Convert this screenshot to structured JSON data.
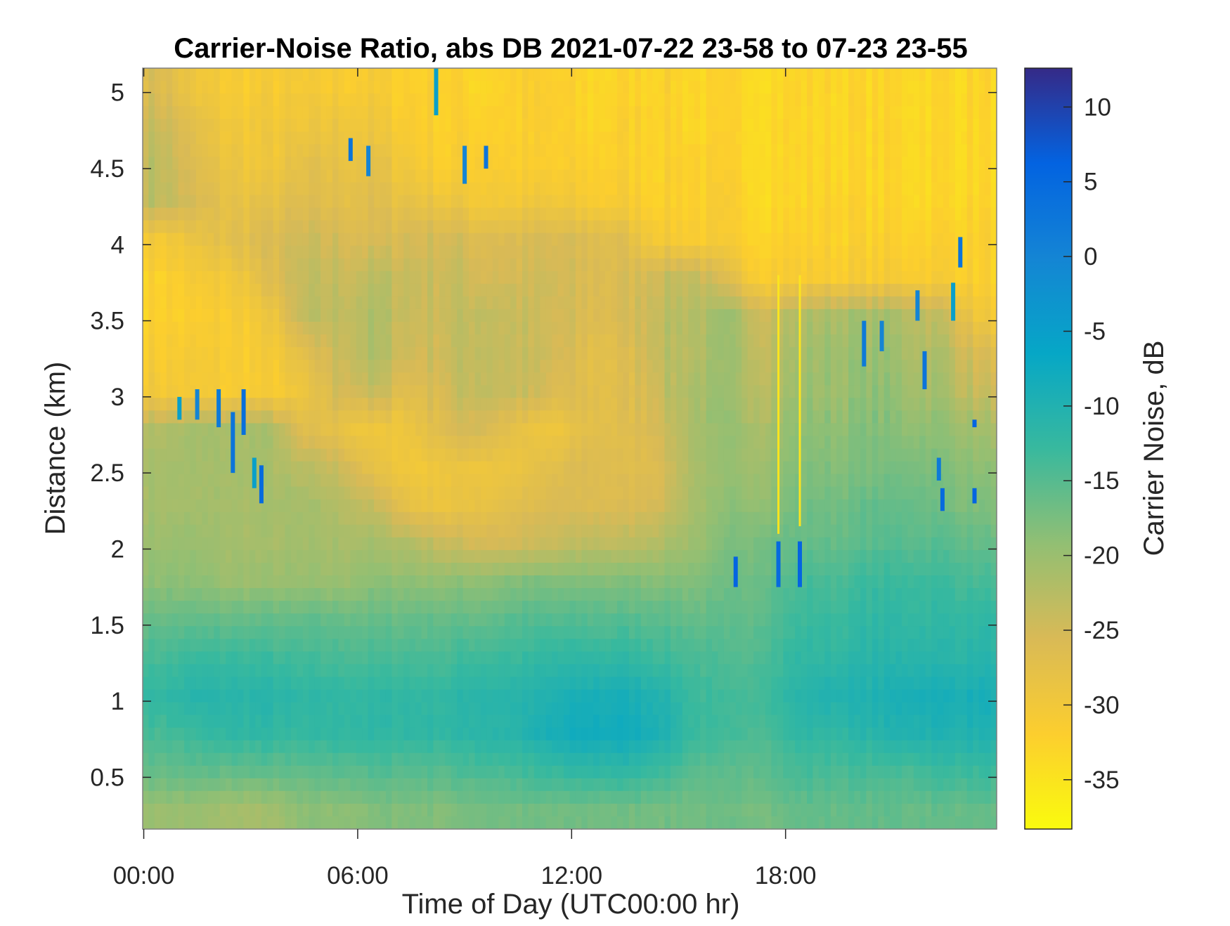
{
  "chart_data": {
    "type": "heatmap",
    "title": "Carrier-Noise Ratio, abs DB 2021-07-22 23-58 to 07-23 23-55",
    "xlabel": "Time of Day (UTC00:00 hr)",
    "ylabel": "Distance (km)",
    "colorbar_label": "Carrier Noise, dB",
    "colormap": "parula (reversed: yellow = low, dark blue = high)",
    "xlim_hours": [
      -0.03,
      23.92
    ],
    "ylim_km": [
      0.16,
      5.16
    ],
    "clim_db": [
      -38.3,
      12.6
    ],
    "x_ticks": [
      {
        "value": 0,
        "label": "00:00"
      },
      {
        "value": 6,
        "label": "06:00"
      },
      {
        "value": 12,
        "label": "12:00"
      },
      {
        "value": 18,
        "label": "18:00"
      }
    ],
    "y_ticks": [
      {
        "value": 0.5,
        "label": "0.5"
      },
      {
        "value": 1,
        "label": "1"
      },
      {
        "value": 1.5,
        "label": "1.5"
      },
      {
        "value": 2,
        "label": "2"
      },
      {
        "value": 2.5,
        "label": "2.5"
      },
      {
        "value": 3,
        "label": "3"
      },
      {
        "value": 3.5,
        "label": "3.5"
      },
      {
        "value": 4,
        "label": "4"
      },
      {
        "value": 4.5,
        "label": "4.5"
      },
      {
        "value": 5,
        "label": "5"
      }
    ],
    "colorbar_ticks": [
      {
        "value": 10,
        "label": "10"
      },
      {
        "value": 5,
        "label": "5"
      },
      {
        "value": 0,
        "label": "0"
      },
      {
        "value": -5,
        "label": "-5"
      },
      {
        "value": -10,
        "label": "-10"
      },
      {
        "value": -15,
        "label": "-15"
      },
      {
        "value": -20,
        "label": "-20"
      },
      {
        "value": -25,
        "label": "-25"
      },
      {
        "value": -30,
        "label": "-30"
      },
      {
        "value": -35,
        "label": "-35"
      }
    ],
    "grid": false,
    "x_hours": [
      0.5,
      1.5,
      2.5,
      3.5,
      4.5,
      5.5,
      6.5,
      7.5,
      8.5,
      9.5,
      10.5,
      11.5,
      12.5,
      13.5,
      14.5,
      15.5,
      16.5,
      17.5,
      18.5,
      19.5,
      20.5,
      21.5,
      22.5,
      23.5
    ],
    "y_km": [
      5.04,
      4.79,
      4.54,
      4.29,
      4.04,
      3.79,
      3.54,
      3.29,
      3.04,
      2.79,
      2.54,
      2.29,
      2.04,
      1.79,
      1.54,
      1.29,
      1.04,
      0.79,
      0.54,
      0.29
    ],
    "values_db": [
      [
        -26,
        -30,
        -31,
        -31,
        -31,
        -31,
        -31,
        -32,
        -32,
        -33,
        -32,
        -32,
        -33,
        -33,
        -32,
        -33,
        -33,
        -33,
        -33,
        -33,
        -33,
        -33,
        -33,
        -33
      ],
      [
        -24,
        -28,
        -30,
        -30,
        -30,
        -29,
        -30,
        -31,
        -32,
        -32,
        -32,
        -32,
        -33,
        -32,
        -32,
        -33,
        -33,
        -33,
        -33,
        -33,
        -33,
        -33,
        -33,
        -33
      ],
      [
        -23,
        -27,
        -29,
        -30,
        -28,
        -28,
        -28,
        -30,
        -32,
        -31,
        -32,
        -32,
        -32,
        -32,
        -32,
        -32,
        -33,
        -33,
        -33,
        -33,
        -33,
        -33,
        -33,
        -33
      ],
      [
        -23,
        -26,
        -28,
        -28,
        -27,
        -27,
        -27,
        -28,
        -29,
        -30,
        -30,
        -30,
        -31,
        -31,
        -32,
        -32,
        -32,
        -33,
        -33,
        -32,
        -33,
        -33,
        -33,
        -33
      ],
      [
        -30,
        -29,
        -27,
        -26,
        -25,
        -25,
        -26,
        -25,
        -25,
        -26,
        -26,
        -26,
        -26,
        -27,
        -30,
        -31,
        -32,
        -32,
        -32,
        -32,
        -32,
        -32,
        -32,
        -32
      ],
      [
        -32,
        -31,
        -30,
        -27,
        -24,
        -24,
        -23,
        -24,
        -24,
        -25,
        -25,
        -25,
        -26,
        -26,
        -24,
        -23,
        -28,
        -31,
        -31,
        -31,
        -31,
        -31,
        -31,
        -32
      ],
      [
        -32,
        -32,
        -31,
        -30,
        -24,
        -23,
        -22,
        -24,
        -24,
        -23,
        -24,
        -25,
        -26,
        -26,
        -23,
        -22,
        -21,
        -24,
        -22,
        -21,
        -21,
        -22,
        -24,
        -30
      ],
      [
        -31,
        -31,
        -31,
        -31,
        -28,
        -24,
        -22,
        -25,
        -24,
        -23,
        -24,
        -25,
        -27,
        -27,
        -23,
        -22,
        -21,
        -23,
        -21,
        -20,
        -20,
        -21,
        -22,
        -26
      ],
      [
        -30,
        -31,
        -31,
        -31,
        -30,
        -25,
        -24,
        -27,
        -25,
        -23,
        -24,
        -26,
        -27,
        -27,
        -24,
        -21,
        -21,
        -22,
        -20,
        -20,
        -19,
        -20,
        -21,
        -24
      ],
      [
        -22,
        -21,
        -21,
        -21,
        -27,
        -28,
        -30,
        -29,
        -26,
        -25,
        -28,
        -30,
        -27,
        -27,
        -25,
        -21,
        -20,
        -21,
        -19,
        -19,
        -18,
        -19,
        -19,
        -21
      ],
      [
        -21,
        -21,
        -21,
        -21,
        -23,
        -24,
        -28,
        -30,
        -29,
        -29,
        -29,
        -27,
        -26,
        -27,
        -26,
        -21,
        -20,
        -20,
        -18,
        -18,
        -18,
        -17,
        -18,
        -19
      ],
      [
        -21,
        -21,
        -21,
        -21,
        -21,
        -22,
        -24,
        -28,
        -29,
        -28,
        -27,
        -26,
        -26,
        -26,
        -25,
        -21,
        -19,
        -19,
        -17,
        -17,
        -16,
        -16,
        -17,
        -18
      ],
      [
        -20,
        -20,
        -21,
        -21,
        -21,
        -21,
        -21,
        -22,
        -24,
        -25,
        -25,
        -24,
        -23,
        -23,
        -22,
        -20,
        -18,
        -17,
        -16,
        -16,
        -15,
        -15,
        -15,
        -16
      ],
      [
        -19,
        -19,
        -20,
        -20,
        -20,
        -20,
        -19,
        -19,
        -19,
        -19,
        -18,
        -18,
        -18,
        -18,
        -18,
        -18,
        -17,
        -16,
        -14,
        -14,
        -13,
        -13,
        -13,
        -14
      ],
      [
        -16,
        -16,
        -16,
        -16,
        -16,
        -16,
        -16,
        -16,
        -16,
        -16,
        -15,
        -15,
        -15,
        -15,
        -15,
        -16,
        -16,
        -15,
        -13,
        -13,
        -12,
        -12,
        -12,
        -12
      ],
      [
        -14,
        -13,
        -13,
        -13,
        -14,
        -14,
        -14,
        -14,
        -14,
        -13,
        -13,
        -12,
        -12,
        -12,
        -13,
        -14,
        -15,
        -14,
        -12,
        -12,
        -11,
        -11,
        -11,
        -11
      ],
      [
        -12,
        -11,
        -11,
        -11,
        -12,
        -12,
        -12,
        -12,
        -12,
        -11,
        -11,
        -10,
        -9,
        -9,
        -10,
        -13,
        -14,
        -13,
        -11,
        -10,
        -10,
        -9,
        -9,
        -9
      ],
      [
        -14,
        -13,
        -12,
        -12,
        -13,
        -12,
        -12,
        -12,
        -12,
        -11,
        -11,
        -9,
        -8,
        -8,
        -9,
        -13,
        -14,
        -14,
        -12,
        -12,
        -11,
        -10,
        -10,
        -10
      ],
      [
        -16,
        -16,
        -16,
        -16,
        -16,
        -15,
        -15,
        -15,
        -15,
        -14,
        -14,
        -13,
        -12,
        -12,
        -13,
        -15,
        -16,
        -15,
        -14,
        -14,
        -14,
        -14,
        -13,
        -13
      ],
      [
        -20,
        -20,
        -21,
        -21,
        -19,
        -19,
        -18,
        -18,
        -18,
        -17,
        -17,
        -17,
        -17,
        -17,
        -17,
        -17,
        -17,
        -17,
        -16,
        -16,
        -16,
        -16,
        -16,
        -16
      ]
    ],
    "spikes": [
      {
        "hour": 1.0,
        "km": [
          2.85,
          3.0
        ],
        "db": -5
      },
      {
        "hour": 1.5,
        "km": [
          2.85,
          3.05
        ],
        "db": 0
      },
      {
        "hour": 2.1,
        "km": [
          2.8,
          3.05
        ],
        "db": 2
      },
      {
        "hour": 2.5,
        "km": [
          2.5,
          2.9
        ],
        "db": 3
      },
      {
        "hour": 2.8,
        "km": [
          2.75,
          3.05
        ],
        "db": 4
      },
      {
        "hour": 3.3,
        "km": [
          2.3,
          2.55
        ],
        "db": 5
      },
      {
        "hour": 3.1,
        "km": [
          2.4,
          2.6
        ],
        "db": -5
      },
      {
        "hour": 5.8,
        "km": [
          4.55,
          4.7
        ],
        "db": 3
      },
      {
        "hour": 6.3,
        "km": [
          4.45,
          4.65
        ],
        "db": 0
      },
      {
        "hour": 8.2,
        "km": [
          4.85,
          5.16
        ],
        "db": -5
      },
      {
        "hour": 9.0,
        "km": [
          4.4,
          4.65
        ],
        "db": 0
      },
      {
        "hour": 9.6,
        "km": [
          4.5,
          4.65
        ],
        "db": 3
      },
      {
        "hour": 16.6,
        "km": [
          1.75,
          1.95
        ],
        "db": 6
      },
      {
        "hour": 17.8,
        "km": [
          2.1,
          3.8
        ],
        "db": -35
      },
      {
        "hour": 18.4,
        "km": [
          2.15,
          3.8
        ],
        "db": -35
      },
      {
        "hour": 17.8,
        "km": [
          1.75,
          2.05
        ],
        "db": 5
      },
      {
        "hour": 18.4,
        "km": [
          1.75,
          2.05
        ],
        "db": 6
      },
      {
        "hour": 20.2,
        "km": [
          3.2,
          3.5
        ],
        "db": 2
      },
      {
        "hour": 20.7,
        "km": [
          3.3,
          3.5
        ],
        "db": 0
      },
      {
        "hour": 21.7,
        "km": [
          3.5,
          3.7
        ],
        "db": 0
      },
      {
        "hour": 21.9,
        "km": [
          3.05,
          3.3
        ],
        "db": 3
      },
      {
        "hour": 22.3,
        "km": [
          2.45,
          2.6
        ],
        "db": 2
      },
      {
        "hour": 22.4,
        "km": [
          2.25,
          2.4
        ],
        "db": 5
      },
      {
        "hour": 22.7,
        "km": [
          3.5,
          3.75
        ],
        "db": -5
      },
      {
        "hour": 22.9,
        "km": [
          3.85,
          4.05
        ],
        "db": 3
      },
      {
        "hour": 23.3,
        "km": [
          2.3,
          2.4
        ],
        "db": 6
      },
      {
        "hour": 23.3,
        "km": [
          2.8,
          2.85
        ],
        "db": 6
      }
    ]
  }
}
